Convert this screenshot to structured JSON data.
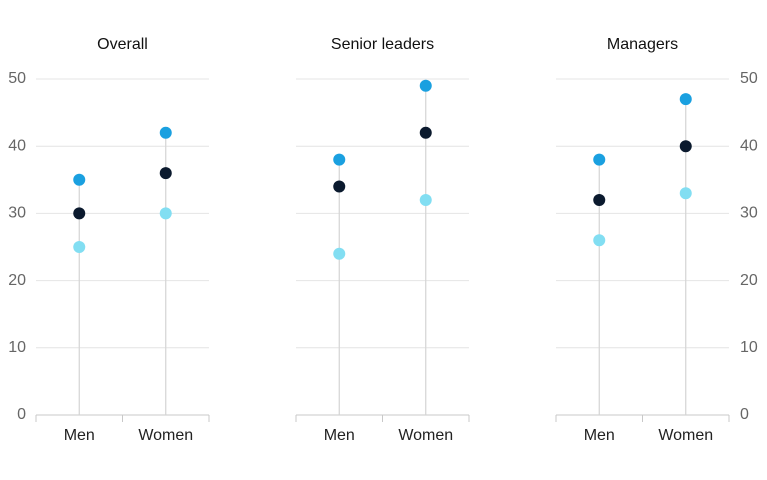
{
  "chart_data": [
    {
      "type": "dot",
      "title": "Overall",
      "categories": [
        "Men",
        "Women"
      ],
      "series": [
        {
          "color": "#1aa0e0",
          "values": [
            35,
            42
          ]
        },
        {
          "color": "#0b1a2e",
          "values": [
            30,
            36
          ]
        },
        {
          "color": "#82def2",
          "values": [
            25,
            30
          ]
        }
      ],
      "ylim": [
        0,
        50
      ],
      "yticks": [
        0,
        10,
        20,
        30,
        40,
        50
      ],
      "grid": true,
      "ytick_labels": "left"
    },
    {
      "type": "dot",
      "title": "Senior leaders",
      "categories": [
        "Men",
        "Women"
      ],
      "series": [
        {
          "color": "#1aa0e0",
          "values": [
            38,
            49
          ]
        },
        {
          "color": "#0b1a2e",
          "values": [
            34,
            42
          ]
        },
        {
          "color": "#82def2",
          "values": [
            24,
            32
          ]
        }
      ],
      "ylim": [
        0,
        50
      ],
      "yticks": [
        0,
        10,
        20,
        30,
        40,
        50
      ],
      "grid": true,
      "ytick_labels": "none"
    },
    {
      "type": "dot",
      "title": "Managers",
      "categories": [
        "Men",
        "Women"
      ],
      "series": [
        {
          "color": "#1aa0e0",
          "values": [
            38,
            47
          ]
        },
        {
          "color": "#0b1a2e",
          "values": [
            32,
            40
          ]
        },
        {
          "color": "#82def2",
          "values": [
            26,
            33
          ]
        }
      ],
      "ylim": [
        0,
        50
      ],
      "yticks": [
        0,
        10,
        20,
        30,
        40,
        50
      ],
      "grid": true,
      "ytick_labels": "right"
    }
  ]
}
